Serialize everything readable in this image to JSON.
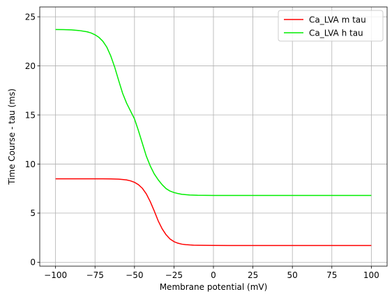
{
  "chart_data": {
    "type": "line",
    "title": "",
    "xlabel": "Membrane potential (mV)",
    "ylabel": "Time Course - tau (ms)",
    "xlim": [
      -110,
      110
    ],
    "ylim": [
      -0.4,
      26
    ],
    "xticks": [
      -100,
      -75,
      -50,
      -25,
      0,
      25,
      50,
      75,
      100
    ],
    "xtick_labels": [
      "−100",
      "−75",
      "−50",
      "−25",
      "0",
      "25",
      "50",
      "75",
      "100"
    ],
    "yticks": [
      0,
      5,
      10,
      15,
      20,
      25
    ],
    "ytick_labels": [
      "0",
      "5",
      "10",
      "15",
      "20",
      "25"
    ],
    "grid": true,
    "legend_position": "top-right",
    "series": [
      {
        "name": "Ca_LVA m tau",
        "color": "#ff0000",
        "x": [
          -100,
          -95,
          -90,
          -85,
          -80,
          -75,
          -70,
          -65,
          -60,
          -57.5,
          -55,
          -52.5,
          -50,
          -47.5,
          -45,
          -42.5,
          -40,
          -37.5,
          -35,
          -32.5,
          -30,
          -27.5,
          -25,
          -22.5,
          -20,
          -17.5,
          -15,
          -12.5,
          -10,
          -5,
          0,
          10,
          20,
          30,
          40,
          50,
          60,
          70,
          80,
          90,
          100
        ],
        "values": [
          8.5,
          8.5,
          8.5,
          8.5,
          8.5,
          8.5,
          8.5,
          8.49,
          8.46,
          8.43,
          8.38,
          8.29,
          8.14,
          7.9,
          7.53,
          6.96,
          6.17,
          5.23,
          4.22,
          3.41,
          2.8,
          2.37,
          2.1,
          1.94,
          1.84,
          1.79,
          1.76,
          1.74,
          1.73,
          1.72,
          1.71,
          1.7,
          1.7,
          1.7,
          1.7,
          1.7,
          1.7,
          1.7,
          1.7,
          1.7,
          1.7
        ]
      },
      {
        "name": "Ca_LVA h tau",
        "color": "#00ee00",
        "x": [
          -100,
          -95,
          -90,
          -85,
          -80,
          -77.5,
          -75,
          -72.5,
          -70,
          -67.5,
          -65,
          -62.5,
          -60,
          -57.5,
          -55,
          -52.5,
          -50,
          -47.5,
          -45,
          -42.5,
          -40,
          -37.5,
          -35,
          -32.5,
          -30,
          -27.5,
          -25,
          -22.5,
          -20,
          -15,
          -10,
          -5,
          0,
          10,
          20,
          30,
          40,
          50,
          60,
          70,
          80,
          90,
          100
        ],
        "values": [
          23.7,
          23.69,
          23.67,
          23.6,
          23.47,
          23.35,
          23.17,
          22.9,
          22.5,
          21.9,
          21.0,
          19.85,
          18.5,
          17.2,
          16.2,
          15.4,
          14.6,
          13.4,
          12.1,
          10.8,
          9.8,
          9.0,
          8.4,
          7.9,
          7.5,
          7.25,
          7.1,
          7.0,
          6.92,
          6.85,
          6.82,
          6.81,
          6.8,
          6.8,
          6.8,
          6.8,
          6.8,
          6.8,
          6.8,
          6.8,
          6.8,
          6.8,
          6.8
        ]
      }
    ]
  }
}
